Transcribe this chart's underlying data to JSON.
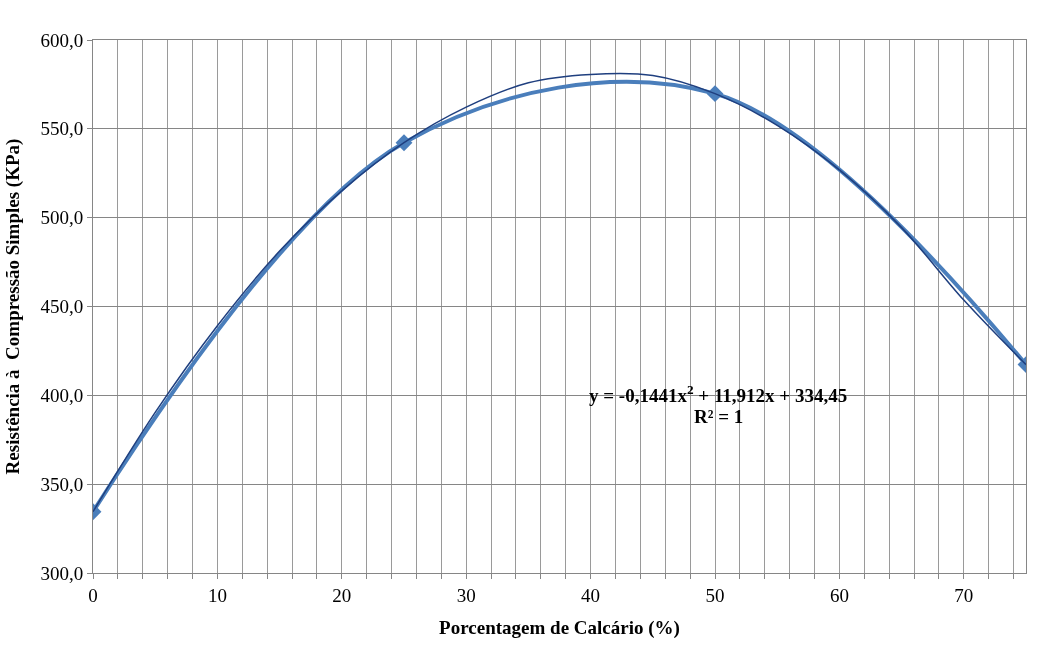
{
  "chart_data": {
    "type": "line",
    "xlabel": "Porcentagem de Calcário (%)",
    "ylabel": "Resistência à  Compressão Simples (KPa)",
    "x": [
      0,
      25,
      50,
      75
    ],
    "series": [
      {
        "color": "#4a7ebb",
        "values": [
          334.5,
          542.2,
          569.8,
          417.3
        ],
        "marker": "diamond"
      },
      {
        "type": "line",
        "color": "#1f3f7f",
        "x": [
          0,
          5,
          10,
          15,
          20,
          25,
          30,
          35,
          40,
          45,
          50,
          55,
          60,
          65,
          70,
          75
        ],
        "values": [
          334.5,
          390.4,
          439.2,
          481.2,
          515.1,
          542.2,
          562.2,
          575.9,
          580.6,
          580.0,
          569.8,
          552.0,
          526.9,
          494.4,
          453.6,
          417.3
        ],
        "marker": "none"
      }
    ],
    "xlim": [
      0,
      75
    ],
    "xticks": [
      0,
      {
        "value": 2,
        "label": null
      },
      {
        "value": 4,
        "label": null
      },
      {
        "value": 6,
        "label": null
      },
      {
        "value": 8,
        "label": null
      },
      10,
      {
        "value": 12,
        "label": null
      },
      {
        "value": 14,
        "label": null
      },
      {
        "value": 16,
        "label": null
      },
      {
        "value": 18,
        "label": null
      },
      20,
      {
        "value": 22,
        "label": null
      },
      {
        "value": 24,
        "label": null
      },
      {
        "value": 26,
        "label": null
      },
      {
        "value": 28,
        "label": null
      },
      30,
      {
        "value": 32,
        "label": null
      },
      {
        "value": 34,
        "label": null
      },
      {
        "value": 36,
        "label": null
      },
      {
        "value": 38,
        "label": null
      },
      40,
      {
        "value": 42,
        "label": null
      },
      {
        "value": 44,
        "label": null
      },
      {
        "value": 46,
        "label": null
      },
      {
        "value": 48,
        "label": null
      },
      50,
      {
        "value": 52,
        "label": null
      },
      {
        "value": 54,
        "label": null
      },
      {
        "value": 56,
        "label": null
      },
      {
        "value": 58,
        "label": null
      },
      60,
      {
        "value": 62,
        "label": null
      },
      {
        "value": 64,
        "label": null
      },
      {
        "value": 66,
        "label": null
      },
      {
        "value": 68,
        "label": null
      },
      70,
      {
        "value": 72,
        "label": null
      },
      {
        "value": 74,
        "label": null
      }
    ],
    "ylim": [
      300,
      600
    ],
    "yticks": [
      {
        "value": 300,
        "label": "300,0"
      },
      {
        "value": 350,
        "label": "350,0"
      },
      {
        "value": 400,
        "label": "400,0"
      },
      {
        "value": 450,
        "label": "450,0"
      },
      {
        "value": 500,
        "label": "500,0"
      },
      {
        "value": 550,
        "label": "550,0"
      },
      {
        "value": 600,
        "label": "600,0"
      }
    ],
    "grid": true,
    "annotations": [
      "y = -0,1441x$^{2}$ + 11,912x + 334,45",
      "R² = 1"
    ]
  }
}
